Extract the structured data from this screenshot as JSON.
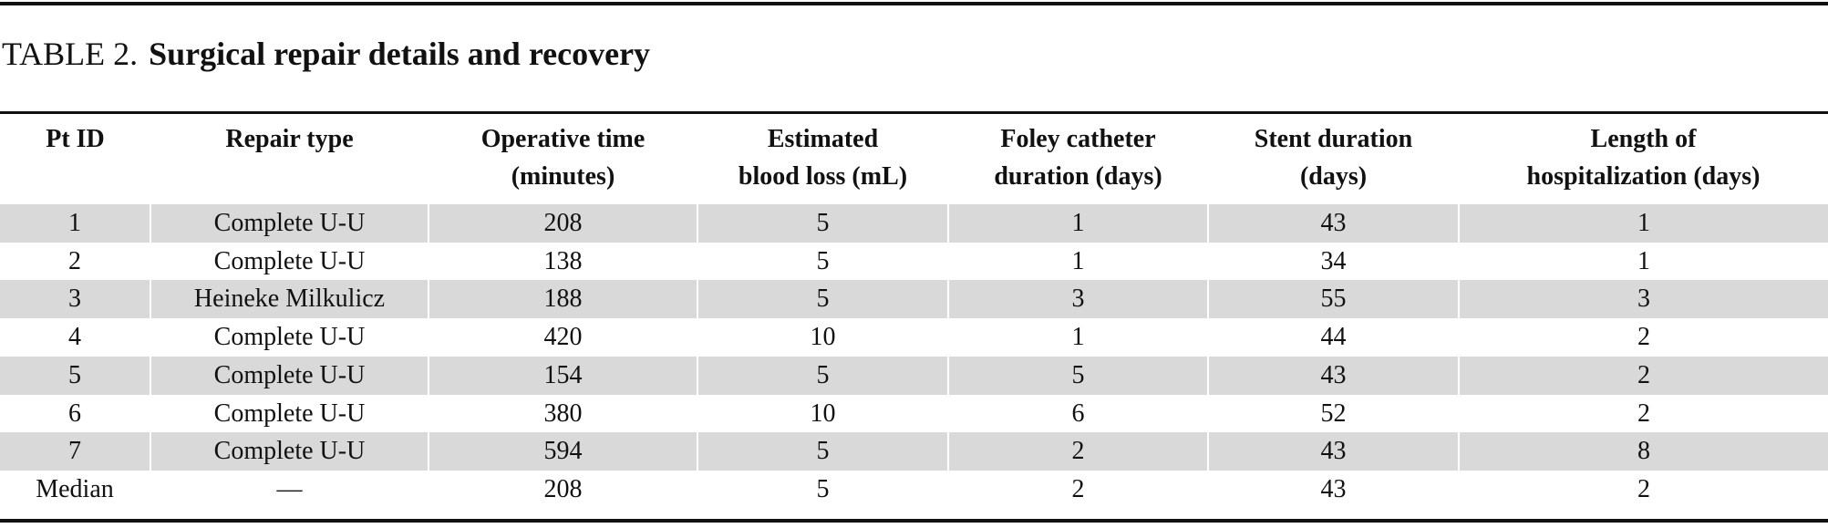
{
  "table": {
    "label": "TABLE 2.",
    "title": "Surgical repair details and recovery",
    "headers": [
      [
        "Pt ID",
        ""
      ],
      [
        "Repair type",
        ""
      ],
      [
        "Operative time",
        "(minutes)"
      ],
      [
        "Estimated",
        "blood loss (mL)"
      ],
      [
        "Foley catheter",
        "duration (days)"
      ],
      [
        "Stent duration",
        "(days)"
      ],
      [
        "Length of",
        "hospitalization (days)"
      ]
    ],
    "rows": [
      [
        "1",
        "Complete U-U",
        "208",
        "5",
        "1",
        "43",
        "1"
      ],
      [
        "2",
        "Complete U-U",
        "138",
        "5",
        "1",
        "34",
        "1"
      ],
      [
        "3",
        "Heineke Milkulicz",
        "188",
        "5",
        "3",
        "55",
        "3"
      ],
      [
        "4",
        "Complete U-U",
        "420",
        "10",
        "1",
        "44",
        "2"
      ],
      [
        "5",
        "Complete U-U",
        "154",
        "5",
        "5",
        "43",
        "2"
      ],
      [
        "6",
        "Complete U-U",
        "380",
        "10",
        "6",
        "52",
        "2"
      ],
      [
        "7",
        "Complete U-U",
        "594",
        "5",
        "2",
        "43",
        "8"
      ],
      [
        "Median",
        "—",
        "208",
        "5",
        "2",
        "43",
        "2"
      ]
    ],
    "shade_color": "#d9d9d9"
  }
}
